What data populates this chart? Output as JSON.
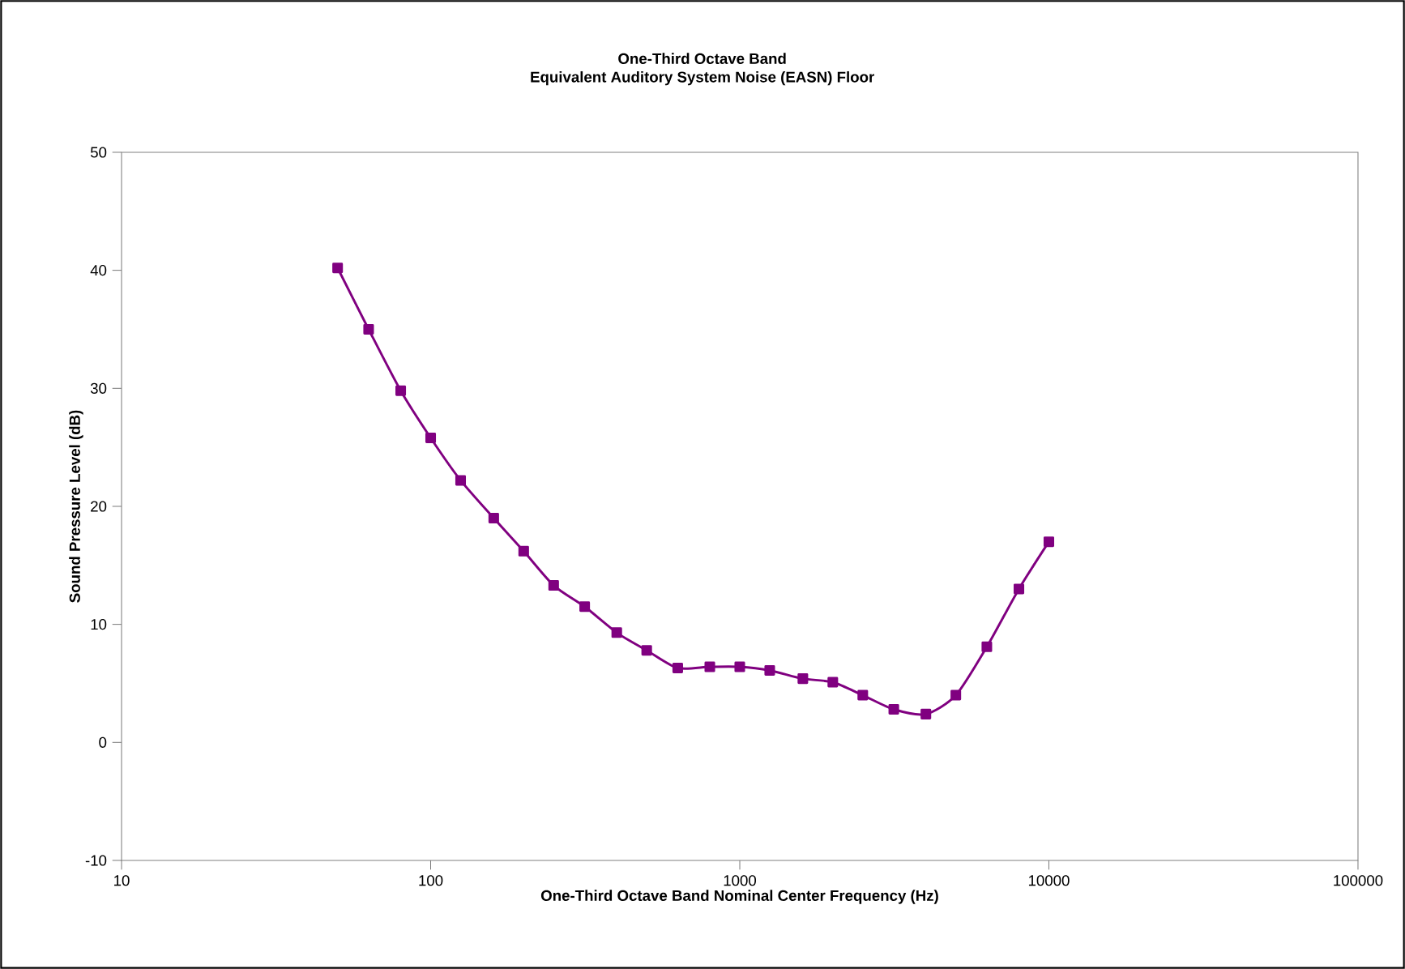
{
  "chart_data": {
    "type": "line",
    "title": "One-Third Octave Band",
    "subtitle": "Equivalent Auditory System Noise (EASN) Floor",
    "xlabel": "One-Third Octave Band Nominal Center Frequency (Hz)",
    "ylabel": "Sound Pressure Level (dB)",
    "x": [
      50,
      63,
      80,
      100,
      125,
      160,
      200,
      250,
      315,
      400,
      500,
      630,
      800,
      1000,
      1250,
      1600,
      2000,
      2500,
      3150,
      4000,
      5000,
      6300,
      8000,
      10000
    ],
    "values": [
      40.2,
      35,
      29.8,
      25.8,
      22.2,
      19,
      16.2,
      13.3,
      11.5,
      9.3,
      7.8,
      6.3,
      6.4,
      6.4,
      6.1,
      5.4,
      5.1,
      4.0,
      2.8,
      2.4,
      4.0,
      8.1,
      13.0,
      17.0
    ],
    "color": "#800080",
    "marker": "square",
    "line_style": "solid",
    "log": "x",
    "xlim": [
      10,
      100000
    ],
    "ylim": [
      -10,
      50
    ],
    "xticks": [
      10,
      100,
      1000,
      10000,
      100000
    ],
    "yticks": [
      -10,
      0,
      10,
      20,
      30,
      40,
      50
    ]
  }
}
